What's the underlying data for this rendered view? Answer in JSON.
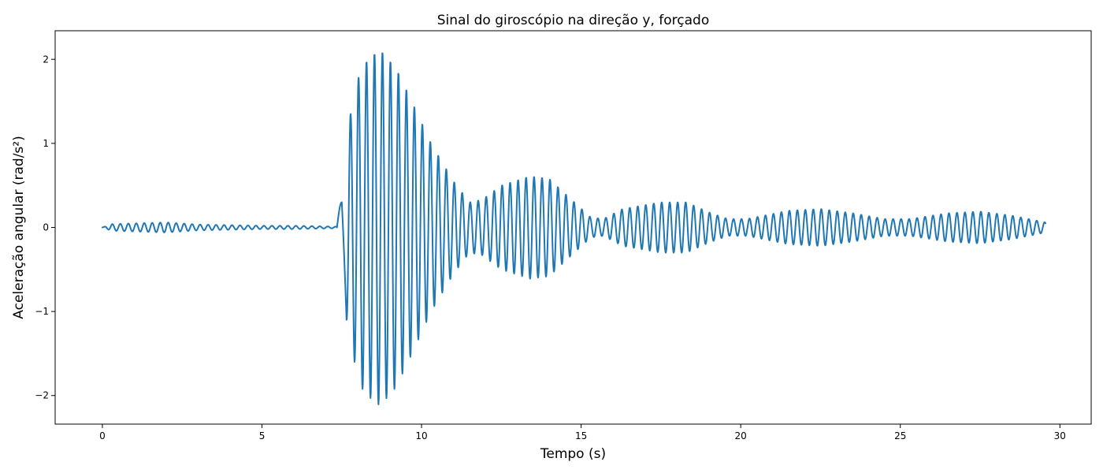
{
  "chart_data": {
    "type": "line",
    "title": "Sinal do giroscópio na direção y, forçado",
    "xlabel": "Tempo (s)",
    "ylabel": "Aceleração angular (rad/s²)",
    "xlim": [
      -1.48,
      30.98
    ],
    "ylim": [
      -2.34,
      2.34
    ],
    "xticks": [
      0,
      5,
      10,
      15,
      20,
      25,
      30
    ],
    "yticks": [
      -2,
      -1,
      0,
      1,
      2
    ],
    "xtick_labels": [
      "0",
      "5",
      "10",
      "15",
      "20",
      "25",
      "30"
    ],
    "ytick_labels": [
      "−2",
      "−1",
      "0",
      "1",
      "2"
    ],
    "grid": false,
    "legend": false,
    "series": [
      {
        "color": "#1f77b4",
        "x_start": 0,
        "x_end": 29.55,
        "dt": 0.01,
        "signal_period": 0.25,
        "pre_event_amplitude_envelope": [
          [
            0,
            0.0
          ],
          [
            0.3,
            0.04
          ],
          [
            2.0,
            0.06
          ],
          [
            3.0,
            0.035
          ],
          [
            5.0,
            0.02
          ],
          [
            6.0,
            0.02
          ],
          [
            7.3,
            0.01
          ]
        ],
        "event_start": 7.35,
        "event_amplitude_envelope": [
          [
            7.45,
            0.2
          ],
          [
            7.65,
            1.1
          ],
          [
            7.9,
            1.6
          ],
          [
            8.1,
            1.9
          ],
          [
            8.4,
            2.03
          ],
          [
            8.7,
            2.12
          ],
          [
            9.2,
            1.9
          ],
          [
            9.7,
            1.5
          ],
          [
            10.3,
            1.0
          ],
          [
            11.0,
            0.55
          ],
          [
            11.5,
            0.3
          ],
          [
            11.9,
            0.33
          ],
          [
            12.5,
            0.5
          ],
          [
            13.4,
            0.61
          ],
          [
            14.0,
            0.58
          ],
          [
            14.5,
            0.4
          ],
          [
            15.3,
            0.12
          ],
          [
            15.7,
            0.1
          ],
          [
            16.3,
            0.22
          ],
          [
            17.5,
            0.3
          ],
          [
            18.3,
            0.3
          ],
          [
            19.0,
            0.18
          ],
          [
            19.6,
            0.1
          ],
          [
            20.2,
            0.1
          ],
          [
            21.5,
            0.2
          ],
          [
            22.5,
            0.22
          ],
          [
            23.5,
            0.17
          ],
          [
            24.5,
            0.1
          ],
          [
            25.3,
            0.1
          ],
          [
            26.5,
            0.17
          ],
          [
            27.5,
            0.19
          ],
          [
            28.5,
            0.14
          ],
          [
            29.55,
            0.06
          ]
        ]
      }
    ]
  }
}
